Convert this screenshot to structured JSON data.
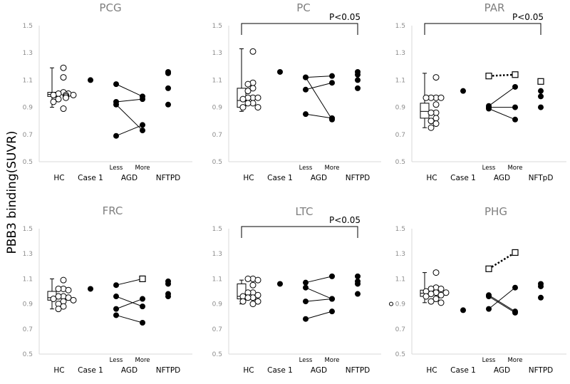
{
  "chart_data": {
    "type": "scatter",
    "ylabel": "PBB3 binding(SUVR)",
    "yticks": [
      "1.5",
      "1.3",
      "1.1",
      "0.9",
      "0.7",
      "0.5"
    ],
    "ylim": [
      0.5,
      1.5
    ],
    "categories": [
      "HC",
      "Case 1",
      "AGD",
      "NFTPD"
    ],
    "agd_sublabels": [
      "Less",
      "More"
    ],
    "stray_marker": {
      "value": 0.9,
      "note": "open circle left of PHG axis"
    },
    "panels": [
      {
        "title": "PCG",
        "significance": null,
        "hc_box": {
          "min": 0.9,
          "q1": 0.98,
          "median": 0.995,
          "q3": 1.01,
          "max": 1.19
        },
        "hc_points": [
          1.19,
          1.12,
          1.01,
          1.0,
          1.0,
          0.99,
          0.99,
          0.99,
          0.98,
          0.98,
          0.97,
          0.96,
          0.94,
          0.89
        ],
        "case1": [
          1.1
        ],
        "agd_pairs": [
          {
            "less": 1.07,
            "more": 0.98,
            "style": "solid"
          },
          {
            "less": 0.94,
            "more": 0.96,
            "style": "solid"
          },
          {
            "less": 0.92,
            "more": 0.73,
            "style": "solid"
          },
          {
            "less": 0.69,
            "more": 0.77,
            "style": "solid"
          }
        ],
        "nftpd": [
          1.15,
          1.16,
          1.04,
          0.92
        ],
        "nftpd_open": []
      },
      {
        "title": "PC",
        "significance": "P<0.05",
        "hc_box": {
          "min": 0.87,
          "q1": 0.9,
          "median": 0.95,
          "q3": 1.04,
          "max": 1.33
        },
        "hc_points": [
          1.31,
          1.08,
          1.07,
          1.04,
          1.02,
          0.97,
          0.97,
          0.97,
          0.96,
          0.93,
          0.93,
          0.9,
          0.9
        ],
        "case1": [
          1.16
        ],
        "agd_pairs": [
          {
            "less": 1.12,
            "more": 1.13,
            "style": "solid"
          },
          {
            "less": 1.03,
            "more": 1.08,
            "style": "solid"
          },
          {
            "less": 1.12,
            "more": 0.81,
            "style": "solid"
          },
          {
            "less": 0.85,
            "more": 0.82,
            "style": "solid"
          }
        ],
        "nftpd": [
          1.16,
          1.14,
          1.1,
          1.04
        ],
        "nftpd_open": []
      },
      {
        "title": "PAR",
        "significance": "P<0.05",
        "hc_box": {
          "min": 0.75,
          "q1": 0.82,
          "median": 0.87,
          "q3": 0.93,
          "max": 1.15
        },
        "hc_points": [
          1.12,
          0.97,
          0.97,
          0.97,
          0.97,
          0.92,
          0.86,
          0.86,
          0.82,
          0.8,
          0.78,
          0.75
        ],
        "case1": [
          1.02
        ],
        "agd_pairs": [
          {
            "less": 1.13,
            "more": 1.14,
            "style": "dotted",
            "marker": "square"
          },
          {
            "less": 0.91,
            "more": 1.05,
            "style": "solid"
          },
          {
            "less": 0.9,
            "more": 0.9,
            "style": "solid"
          },
          {
            "less": 0.89,
            "more": 0.81,
            "style": "solid"
          }
        ],
        "nftpd": [
          1.02,
          0.98,
          0.9
        ],
        "nftpd_open": [
          1.09
        ],
        "nftpd_label": "NFTpD"
      },
      {
        "title": "FRC",
        "significance": null,
        "hc_box": {
          "min": 0.86,
          "q1": 0.93,
          "median": 0.95,
          "q3": 1.0,
          "max": 1.1
        },
        "hc_points": [
          1.09,
          1.02,
          1.02,
          1.01,
          0.96,
          0.96,
          0.95,
          0.94,
          0.93,
          0.92,
          0.9,
          0.88,
          0.86
        ],
        "case1": [
          1.02
        ],
        "agd_pairs": [
          {
            "less": 1.05,
            "more": 1.1,
            "style": "solid",
            "more_marker": "square"
          },
          {
            "less": 0.96,
            "more": 0.88,
            "style": "solid"
          },
          {
            "less": 0.86,
            "more": 0.94,
            "style": "solid"
          },
          {
            "less": 0.81,
            "more": 0.75,
            "style": "solid"
          }
        ],
        "nftpd": [
          1.08,
          1.06,
          0.98,
          0.96
        ],
        "nftpd_open": []
      },
      {
        "title": "LTC",
        "significance": "P<0.05",
        "hc_box": {
          "min": 0.9,
          "q1": 0.94,
          "median": 0.96,
          "q3": 1.06,
          "max": 1.09
        },
        "hc_points": [
          1.1,
          1.1,
          1.09,
          1.05,
          0.99,
          0.99,
          0.97,
          0.96,
          0.95,
          0.95,
          0.92,
          0.92,
          0.9
        ],
        "case1": [
          1.06
        ],
        "agd_pairs": [
          {
            "less": 1.07,
            "more": 1.12,
            "style": "solid"
          },
          {
            "less": 1.03,
            "more": 0.94,
            "style": "solid"
          },
          {
            "less": 0.92,
            "more": 0.94,
            "style": "solid"
          },
          {
            "less": 0.78,
            "more": 0.84,
            "style": "solid"
          }
        ],
        "nftpd": [
          1.12,
          1.08,
          1.06,
          0.98
        ],
        "nftpd_open": []
      },
      {
        "title": "PHG",
        "significance": null,
        "hc_box": {
          "min": 0.91,
          "q1": 0.96,
          "median": 0.985,
          "q3": 1.01,
          "max": 1.15
        },
        "hc_points": [
          1.15,
          1.03,
          1.02,
          1.02,
          1.0,
          0.99,
          0.99,
          0.98,
          0.97,
          0.96,
          0.94,
          0.92,
          0.91
        ],
        "case1": [
          0.85
        ],
        "agd_pairs": [
          {
            "less": 1.18,
            "more": 1.31,
            "style": "dotted",
            "marker": "square"
          },
          {
            "less": 0.86,
            "more": 1.03,
            "style": "solid"
          },
          {
            "less": 0.97,
            "more": 0.84,
            "style": "double"
          },
          {
            "less": 0.96,
            "more": 0.83,
            "style": "double"
          }
        ],
        "nftpd": [
          1.06,
          1.04,
          0.95
        ],
        "nftpd_open": []
      }
    ]
  }
}
